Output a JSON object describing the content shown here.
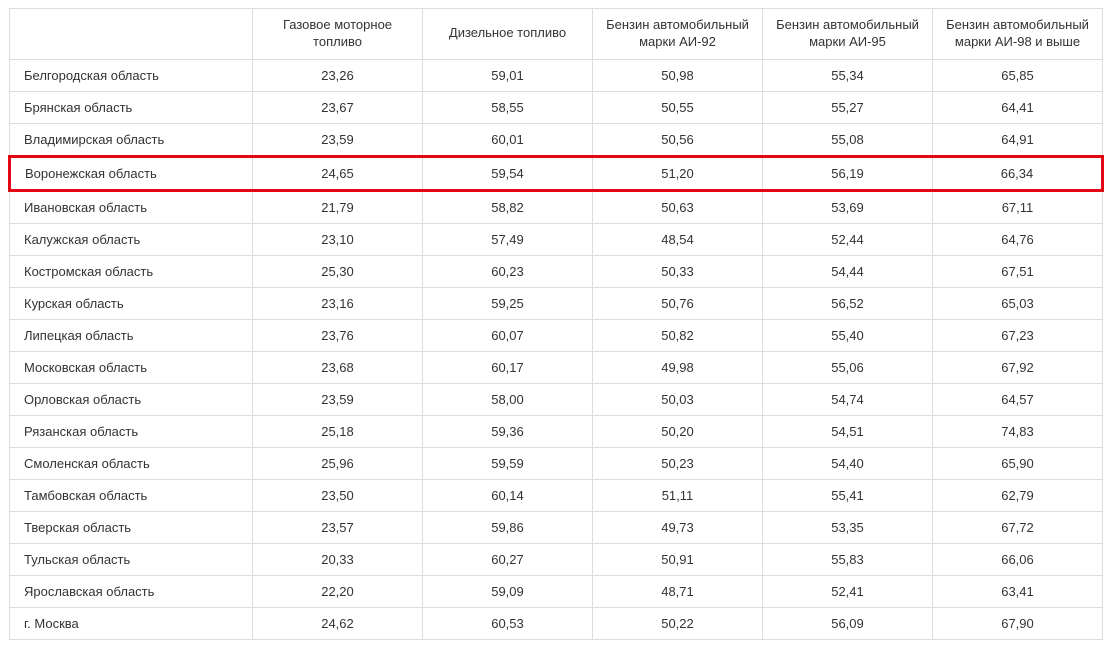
{
  "table": {
    "highlight_color": "#e30613",
    "border_color": "#dddddd",
    "text_color": "#333333",
    "font_size": 13,
    "columns": [
      "",
      "Газовое моторное топливо",
      "Дизельное топливо",
      "Бензин автомобильный марки АИ-92",
      "Бензин автомобильный марки АИ-95",
      "Бензин автомобильный марки АИ-98 и выше"
    ],
    "rows": [
      {
        "region": "Белгородская область",
        "values": [
          "23,26",
          "59,01",
          "50,98",
          "55,34",
          "65,85"
        ],
        "highlighted": false
      },
      {
        "region": "Брянская область",
        "values": [
          "23,67",
          "58,55",
          "50,55",
          "55,27",
          "64,41"
        ],
        "highlighted": false
      },
      {
        "region": "Владимирская область",
        "values": [
          "23,59",
          "60,01",
          "50,56",
          "55,08",
          "64,91"
        ],
        "highlighted": false
      },
      {
        "region": "Воронежская область",
        "values": [
          "24,65",
          "59,54",
          "51,20",
          "56,19",
          "66,34"
        ],
        "highlighted": true
      },
      {
        "region": "Ивановская область",
        "values": [
          "21,79",
          "58,82",
          "50,63",
          "53,69",
          "67,11"
        ],
        "highlighted": false
      },
      {
        "region": "Калужская область",
        "values": [
          "23,10",
          "57,49",
          "48,54",
          "52,44",
          "64,76"
        ],
        "highlighted": false
      },
      {
        "region": "Костромская область",
        "values": [
          "25,30",
          "60,23",
          "50,33",
          "54,44",
          "67,51"
        ],
        "highlighted": false
      },
      {
        "region": "Курская область",
        "values": [
          "23,16",
          "59,25",
          "50,76",
          "56,52",
          "65,03"
        ],
        "highlighted": false
      },
      {
        "region": "Липецкая область",
        "values": [
          "23,76",
          "60,07",
          "50,82",
          "55,40",
          "67,23"
        ],
        "highlighted": false
      },
      {
        "region": "Московская область",
        "values": [
          "23,68",
          "60,17",
          "49,98",
          "55,06",
          "67,92"
        ],
        "highlighted": false
      },
      {
        "region": "Орловская область",
        "values": [
          "23,59",
          "58,00",
          "50,03",
          "54,74",
          "64,57"
        ],
        "highlighted": false
      },
      {
        "region": "Рязанская область",
        "values": [
          "25,18",
          "59,36",
          "50,20",
          "54,51",
          "74,83"
        ],
        "highlighted": false
      },
      {
        "region": "Смоленская область",
        "values": [
          "25,96",
          "59,59",
          "50,23",
          "54,40",
          "65,90"
        ],
        "highlighted": false
      },
      {
        "region": "Тамбовская область",
        "values": [
          "23,50",
          "60,14",
          "51,11",
          "55,41",
          "62,79"
        ],
        "highlighted": false
      },
      {
        "region": "Тверская область",
        "values": [
          "23,57",
          "59,86",
          "49,73",
          "53,35",
          "67,72"
        ],
        "highlighted": false
      },
      {
        "region": "Тульская область",
        "values": [
          "20,33",
          "60,27",
          "50,91",
          "55,83",
          "66,06"
        ],
        "highlighted": false
      },
      {
        "region": "Ярославская область",
        "values": [
          "22,20",
          "59,09",
          "48,71",
          "52,41",
          "63,41"
        ],
        "highlighted": false
      },
      {
        "region": "г. Москва",
        "values": [
          "24,62",
          "60,53",
          "50,22",
          "56,09",
          "67,90"
        ],
        "highlighted": false
      }
    ]
  }
}
